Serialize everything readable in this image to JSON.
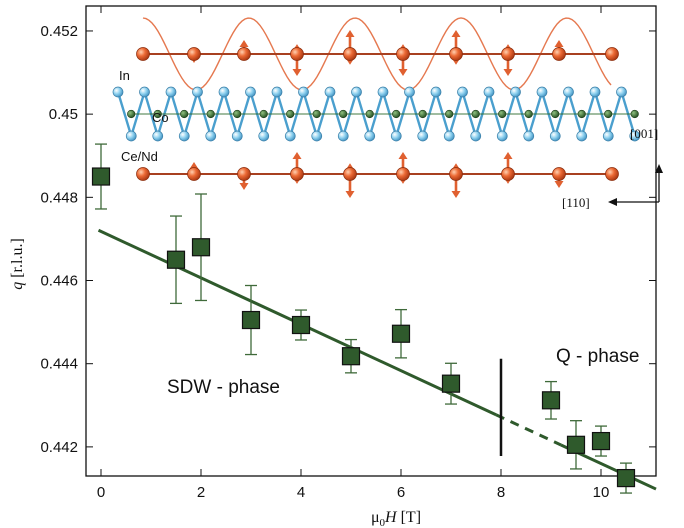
{
  "chart_data": {
    "type": "scatter",
    "x_label_base": "μ",
    "x_label_sub": "0",
    "x_label_var": "H",
    "x_label_unit": " [T]",
    "y_label_var": "q",
    "y_label_unit": " [r.l.u.]",
    "xlim": [
      -0.3,
      11.1
    ],
    "ylim": [
      0.4413,
      0.4526
    ],
    "x_ticks": [
      0,
      2,
      4,
      6,
      8,
      10
    ],
    "y_ticks": [
      0.442,
      0.444,
      0.446,
      0.448,
      0.45,
      0.452
    ],
    "y_tick_labels": [
      "0.442",
      "0.444",
      "0.446",
      "0.448",
      "0.45",
      "0.452"
    ],
    "series": [
      {
        "marker": "square",
        "color": "#2f5a2c",
        "points": [
          {
            "x": 0,
            "y": 0.4485,
            "err": 0.00078
          },
          {
            "x": 1.5,
            "y": 0.4465,
            "err": 0.00105
          },
          {
            "x": 2,
            "y": 0.4468,
            "err": 0.00128
          },
          {
            "x": 3,
            "y": 0.44505,
            "err": 0.00083
          },
          {
            "x": 4,
            "y": 0.44493,
            "err": 0.00036
          },
          {
            "x": 5,
            "y": 0.44418,
            "err": 0.0004
          },
          {
            "x": 6,
            "y": 0.44472,
            "err": 0.00058
          },
          {
            "x": 7,
            "y": 0.44352,
            "err": 0.00049
          },
          {
            "x": 9,
            "y": 0.44312,
            "err": 0.00045
          },
          {
            "x": 9.5,
            "y": 0.44205,
            "err": 0.00058
          },
          {
            "x": 10,
            "y": 0.44214,
            "err": 0.00036
          },
          {
            "x": 10.5,
            "y": 0.44125,
            "err": 0.00036
          }
        ]
      }
    ],
    "fit_line": {
      "slope": -0.000558,
      "intercept": 0.44718,
      "solid_range": [
        -0.05,
        7.9
      ],
      "dashed_range": [
        7.9,
        9.2
      ],
      "solid2_range": [
        9.2,
        11.1
      ],
      "color": "#2f5a2c"
    },
    "boundary_x": 8,
    "boundary_y_range": [
      0.44178,
      0.44412
    ],
    "annotations": {
      "left_phase": "SDW - phase",
      "right_phase": "Q - phase"
    },
    "inset": {
      "label_in": "In",
      "label_co": "Co",
      "label_ce": "Ce/Nd",
      "dir_c": "[001]",
      "dir_ab": "[110]",
      "atom_color_ce": "#e06030",
      "atom_color_in": "#7ec8e8",
      "atom_color_co": "#2f6a2c"
    }
  }
}
